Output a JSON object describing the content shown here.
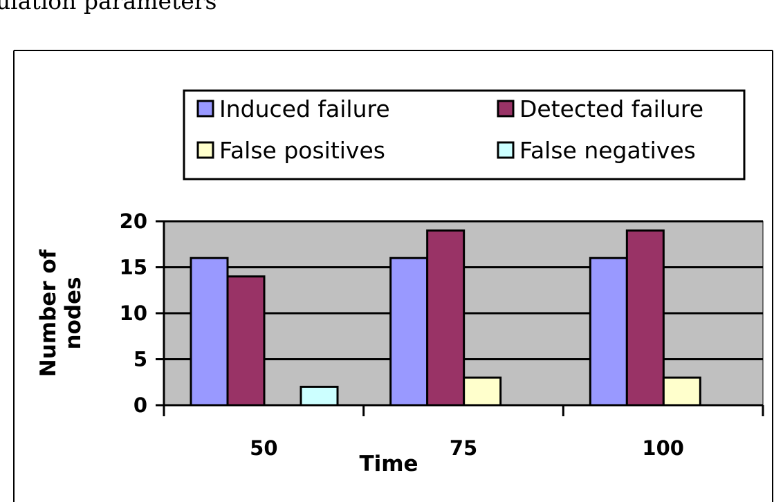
{
  "page": {
    "caption": "ulation parameters"
  },
  "chart_data": {
    "type": "bar",
    "categories": [
      "50",
      "75",
      "100"
    ],
    "series": [
      {
        "name": "Induced failure",
        "values": [
          16,
          16,
          16
        ],
        "color": "#9999ff"
      },
      {
        "name": "Detected failure",
        "values": [
          14,
          19,
          19
        ],
        "color": "#993366"
      },
      {
        "name": "False positives",
        "values": [
          0,
          3,
          3
        ],
        "color": "#ffffcc"
      },
      {
        "name": "False negatives",
        "values": [
          2,
          0,
          0
        ],
        "color": "#ccffff"
      }
    ],
    "xlabel": "Time",
    "ylabel": [
      "Number of",
      "nodes"
    ],
    "ylim": [
      0,
      20
    ],
    "yticks": [
      0,
      5,
      10,
      15,
      20
    ],
    "grid": true,
    "plot_background": "#c0c0c0",
    "legend_position": "top"
  }
}
